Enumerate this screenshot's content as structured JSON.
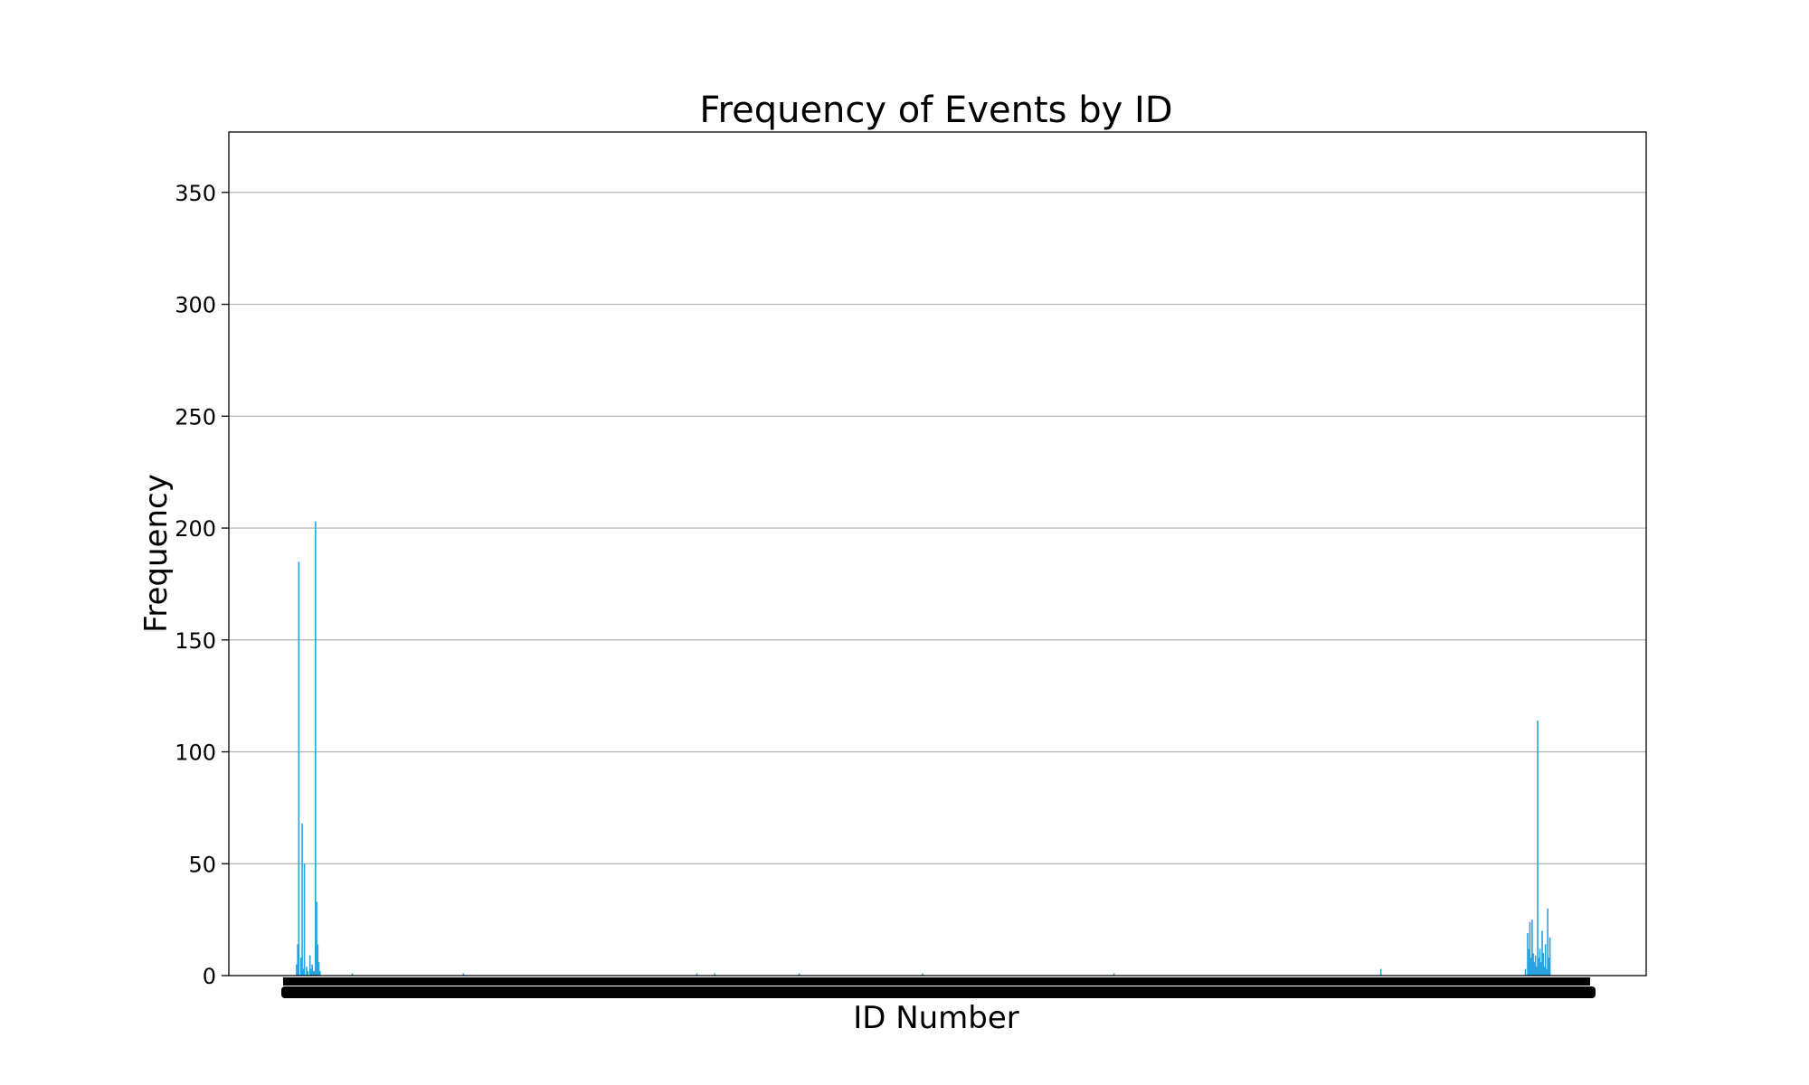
{
  "chart_data": {
    "type": "bar",
    "title": "Frequency of Events by ID",
    "xlabel": "ID Number",
    "ylabel": "Frequency",
    "ylim": [
      0,
      377
    ],
    "yticks": [
      0,
      50,
      100,
      150,
      200,
      250,
      300,
      350
    ],
    "grid": "y",
    "x_range": [
      1,
      1160
    ],
    "bar_color": "#29a3e0",
    "x_tick_labels_legible": false,
    "x": [
      5,
      6,
      7,
      9,
      10,
      11,
      12,
      14,
      15,
      17,
      18,
      19,
      20,
      21,
      22,
      23,
      24,
      25,
      26,
      55,
      155,
      365,
      381,
      457,
      568,
      740,
      980,
      1110,
      1112,
      1113,
      1114,
      1115,
      1116,
      1117,
      1118,
      1119,
      1120,
      1121,
      1122,
      1123,
      1124,
      1125,
      1126,
      1127,
      1128,
      1129,
      1130,
      1131,
      1132
    ],
    "values": [
      5,
      14,
      185,
      8,
      68,
      3,
      50,
      4,
      2,
      9,
      3,
      5,
      2,
      2,
      203,
      33,
      14,
      6,
      2,
      1,
      1,
      1,
      1,
      1,
      1,
      1,
      3,
      3,
      19,
      12,
      24,
      8,
      25,
      10,
      6,
      9,
      4,
      114,
      8,
      12,
      6,
      20,
      10,
      4,
      14,
      3,
      30,
      8,
      17
    ]
  }
}
